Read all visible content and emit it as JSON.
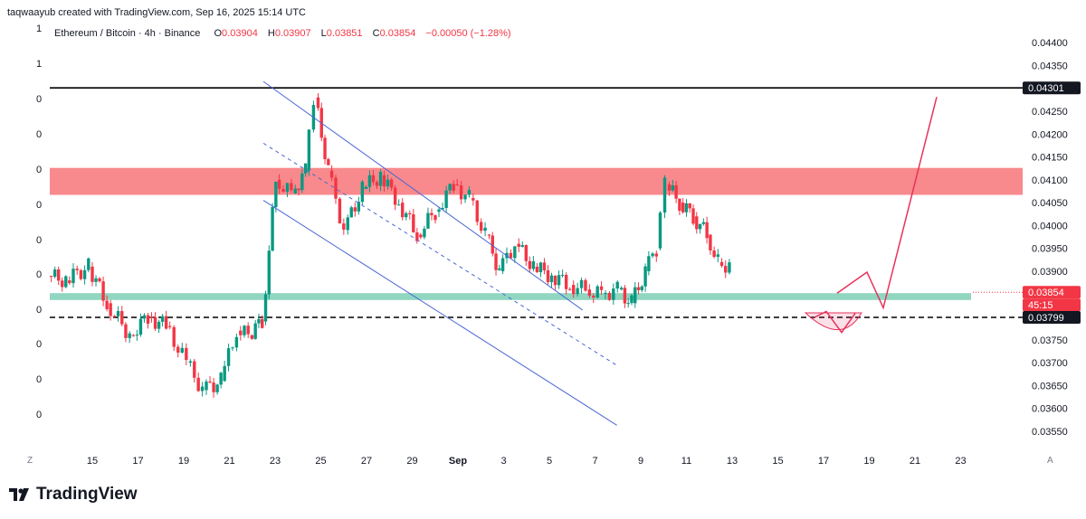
{
  "header": {
    "attribution": "taqwaayub created with TradingView.com, Sep 16, 2025 15:14 UTC"
  },
  "legend": {
    "symbol": "Ethereum / Bitcoin · 4h · Binance",
    "open_label": "O",
    "open": "0.03904",
    "high_label": "H",
    "high": "0.03907",
    "low_label": "L",
    "low": "0.03851",
    "close_label": "C",
    "close": "0.03854",
    "change": "−0.00050 (−1.28%)"
  },
  "left_axis_labels": [
    "1",
    "1",
    "0",
    "0",
    "0",
    "0",
    "0",
    "0",
    "0",
    "0",
    "0",
    "0"
  ],
  "corner_left": "Z",
  "corner_right": "A",
  "brand": {
    "name": "TradingView"
  },
  "colors": {
    "up": "#089981",
    "down": "#f23645",
    "zone_red": "#f77c80",
    "zone_green": "#7ccfb6",
    "channel": "#4a67d6",
    "projection": "#e8315b"
  },
  "chart_data": {
    "type": "candlestick",
    "title": "Ethereum / Bitcoin · 4h · Binance",
    "ylim": [
      0.0353,
      0.0443
    ],
    "y_ticks": [
      "0.04400",
      "0.04350",
      "0.04300",
      "0.04250",
      "0.04200",
      "0.04150",
      "0.04100",
      "0.04050",
      "0.04000",
      "0.03950",
      "0.03900",
      "0.03850",
      "0.03800",
      "0.03750",
      "0.03700",
      "0.03650",
      "0.03600",
      "0.03550"
    ],
    "x_ticks": [
      "15",
      "17",
      "19",
      "21",
      "23",
      "25",
      "27",
      "29",
      "Sep",
      "3",
      "5",
      "7",
      "9",
      "11",
      "13",
      "15",
      "17",
      "19",
      "21",
      "23"
    ],
    "price_labels": [
      {
        "text": "0.04301",
        "value": 0.04301,
        "style": "black"
      },
      {
        "text": "0.03854",
        "value": 0.03854,
        "style": "red"
      },
      {
        "text": "45:15",
        "value": 0.03854,
        "style": "red-sub"
      },
      {
        "text": "0.03799",
        "value": 0.03799,
        "style": "black"
      }
    ],
    "horizontal_lines": [
      {
        "value": 0.04301,
        "style": "solid"
      },
      {
        "value": 0.03799,
        "style": "dashed"
      }
    ],
    "zones": [
      {
        "name": "resistance",
        "from": 0.04067,
        "to": 0.04126,
        "color": "#f77c80"
      },
      {
        "name": "support",
        "from": 0.03837,
        "to": 0.03852,
        "color": "#7ccfb6"
      }
    ],
    "channel": {
      "upper": [
        [
          22.5,
          0.04315
        ],
        [
          36.5,
          0.03815
        ]
      ],
      "lower": [
        [
          22.5,
          0.04055
        ],
        [
          38.0,
          0.03563
        ]
      ],
      "mid": [
        [
          22.5,
          0.0418
        ],
        [
          38.0,
          0.03694
        ]
      ]
    },
    "projection": [
      [
        36.4,
        0.03834
      ],
      [
        37.2,
        0.03898
      ],
      [
        38.2,
        0.03822
      ],
      [
        41.0,
        0.04281
      ]
    ],
    "projection_dip": [
      [
        35.0,
        0.03809
      ],
      [
        35.5,
        0.03791
      ],
      [
        36.0,
        0.03764
      ]
    ],
    "candles_summary": {
      "start_day": 13.0,
      "days": [
        {
          "d": 13.2,
          "o": 0.0389,
          "h": 0.0391,
          "l": 0.0385,
          "c": 0.0388
        },
        {
          "d": 14.0,
          "o": 0.0388,
          "h": 0.0393,
          "l": 0.0386,
          "c": 0.0391
        },
        {
          "d": 15.0,
          "o": 0.0391,
          "h": 0.0392,
          "l": 0.0382,
          "c": 0.0383
        },
        {
          "d": 15.8,
          "o": 0.0383,
          "h": 0.0384,
          "l": 0.0373,
          "c": 0.0376
        },
        {
          "d": 16.8,
          "o": 0.0376,
          "h": 0.0381,
          "l": 0.0373,
          "c": 0.038
        },
        {
          "d": 17.6,
          "o": 0.038,
          "h": 0.0386,
          "l": 0.0377,
          "c": 0.0378
        },
        {
          "d": 18.4,
          "o": 0.0378,
          "h": 0.0379,
          "l": 0.0368,
          "c": 0.037
        },
        {
          "d": 19.3,
          "o": 0.037,
          "h": 0.0373,
          "l": 0.0362,
          "c": 0.0364
        },
        {
          "d": 20.0,
          "o": 0.0364,
          "h": 0.0368,
          "l": 0.036,
          "c": 0.0366
        },
        {
          "d": 20.8,
          "o": 0.0366,
          "h": 0.0379,
          "l": 0.0365,
          "c": 0.0377
        },
        {
          "d": 21.5,
          "o": 0.0377,
          "h": 0.0379,
          "l": 0.0374,
          "c": 0.0376
        },
        {
          "d": 22.0,
          "o": 0.0376,
          "h": 0.0381,
          "l": 0.0375,
          "c": 0.0379
        },
        {
          "d": 22.6,
          "o": 0.0379,
          "h": 0.0412,
          "l": 0.0378,
          "c": 0.041
        },
        {
          "d": 23.2,
          "o": 0.041,
          "h": 0.0414,
          "l": 0.0405,
          "c": 0.0407
        },
        {
          "d": 23.9,
          "o": 0.0407,
          "h": 0.0413,
          "l": 0.0406,
          "c": 0.0412
        },
        {
          "d": 24.5,
          "o": 0.0412,
          "h": 0.0432,
          "l": 0.041,
          "c": 0.0428
        },
        {
          "d": 24.9,
          "o": 0.0428,
          "h": 0.043,
          "l": 0.041,
          "c": 0.0412
        },
        {
          "d": 25.5,
          "o": 0.0412,
          "h": 0.0414,
          "l": 0.0397,
          "c": 0.0399
        },
        {
          "d": 26.2,
          "o": 0.0399,
          "h": 0.041,
          "l": 0.0398,
          "c": 0.0408
        },
        {
          "d": 27.0,
          "o": 0.0408,
          "h": 0.0414,
          "l": 0.0406,
          "c": 0.0411
        },
        {
          "d": 27.8,
          "o": 0.0411,
          "h": 0.0412,
          "l": 0.0403,
          "c": 0.0405
        },
        {
          "d": 28.6,
          "o": 0.0405,
          "h": 0.0406,
          "l": 0.0396,
          "c": 0.0398
        },
        {
          "d": 29.4,
          "o": 0.0398,
          "h": 0.0405,
          "l": 0.0397,
          "c": 0.0403
        },
        {
          "d": 30.2,
          "o": 0.0403,
          "h": 0.0411,
          "l": 0.0401,
          "c": 0.0409
        },
        {
          "d": 31.0,
          "o": 0.0409,
          "h": 0.0411,
          "l": 0.0404,
          "c": 0.0406
        },
        {
          "d": 31.7,
          "o": 0.0406,
          "h": 0.0407,
          "l": 0.0396,
          "c": 0.0398
        },
        {
          "d": 32.4,
          "o": 0.0398,
          "h": 0.0399,
          "l": 0.0387,
          "c": 0.039
        },
        {
          "d": 33.0,
          "o": 0.039,
          "h": 0.0399,
          "l": 0.0388,
          "c": 0.0396
        },
        {
          "d": 33.7,
          "o": 0.0396,
          "h": 0.0398,
          "l": 0.0389,
          "c": 0.0391
        },
        {
          "d": 34.5,
          "o": 0.0391,
          "h": 0.0395,
          "l": 0.0387,
          "c": 0.0389
        },
        {
          "d": 35.3,
          "o": 0.0389,
          "h": 0.0391,
          "l": 0.0385,
          "c": 0.0387
        },
        {
          "d": 36.1,
          "o": 0.0387,
          "h": 0.039,
          "l": 0.0384,
          "c": 0.0386
        },
        {
          "d": 36.8,
          "o": 0.0386,
          "h": 0.0389,
          "l": 0.0382,
          "c": 0.0385
        },
        {
          "d": 37.5,
          "o": 0.0385,
          "h": 0.0388,
          "l": 0.0384,
          "c": 0.0386
        },
        {
          "d": 38.2,
          "o": 0.0386,
          "h": 0.0387,
          "l": 0.038,
          "c": 0.0383
        },
        {
          "d": 38.8,
          "o": 0.0383,
          "h": 0.0392,
          "l": 0.038,
          "c": 0.039
        },
        {
          "d": 39.4,
          "o": 0.039,
          "h": 0.0397,
          "l": 0.0388,
          "c": 0.0395
        },
        {
          "d": 39.9,
          "o": 0.0395,
          "h": 0.0411,
          "l": 0.0394,
          "c": 0.0409
        },
        {
          "d": 40.3,
          "o": 0.0409,
          "h": 0.0411,
          "l": 0.0403,
          "c": 0.0405
        },
        {
          "d": 40.9,
          "o": 0.0405,
          "h": 0.0406,
          "l": 0.04,
          "c": 0.0402
        },
        {
          "d": 41.5,
          "o": 0.0402,
          "h": 0.0403,
          "l": 0.0396,
          "c": 0.0398
        },
        {
          "d": 42.1,
          "o": 0.0398,
          "h": 0.0399,
          "l": 0.039,
          "c": 0.0392
        },
        {
          "d": 42.6,
          "o": 0.0392,
          "h": 0.0393,
          "l": 0.0389,
          "c": 0.0391
        },
        {
          "d": 43.1,
          "o": 0.0391,
          "h": 0.0391,
          "l": 0.0385,
          "c": 0.0385
        }
      ]
    }
  }
}
